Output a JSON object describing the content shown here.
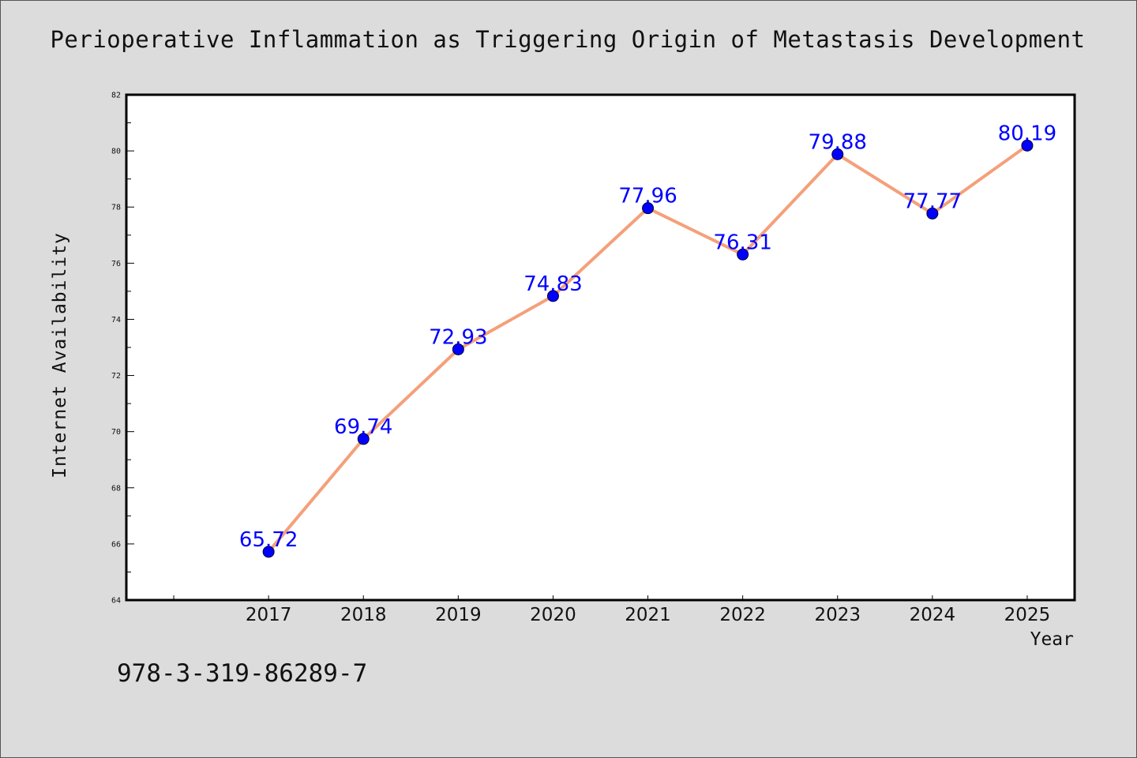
{
  "chart_data": {
    "type": "line",
    "title": "Perioperative Inflammation as Triggering Origin of Metastasis Development",
    "xlabel": "Year",
    "ylabel": "Internet Availability",
    "x": [
      "2017",
      "2018",
      "2019",
      "2020",
      "2021",
      "2022",
      "2023",
      "2024",
      "2025"
    ],
    "series": [
      {
        "values": [
          65.72,
          69.74,
          72.93,
          74.83,
          77.96,
          76.31,
          79.88,
          77.77,
          80.19
        ],
        "labels": [
          "65.72",
          "69.74",
          "72.93",
          "74.83",
          "77.96",
          "76.31",
          "79.88",
          "77.77",
          "80.19"
        ],
        "line_color": "#f4a07a",
        "marker_color": "#0000ff"
      }
    ],
    "ylim": [
      64,
      82
    ],
    "yticks": [
      "64",
      "66",
      "68",
      "70",
      "72",
      "74",
      "76",
      "78",
      "80",
      "82"
    ],
    "x_range": [
      2015.5,
      2025.5
    ],
    "grid": false,
    "legend": "none",
    "background": "#dcdcdc",
    "plot_background": "#ffffff"
  },
  "footer": {
    "isbn": "978-3-319-86289-7"
  }
}
